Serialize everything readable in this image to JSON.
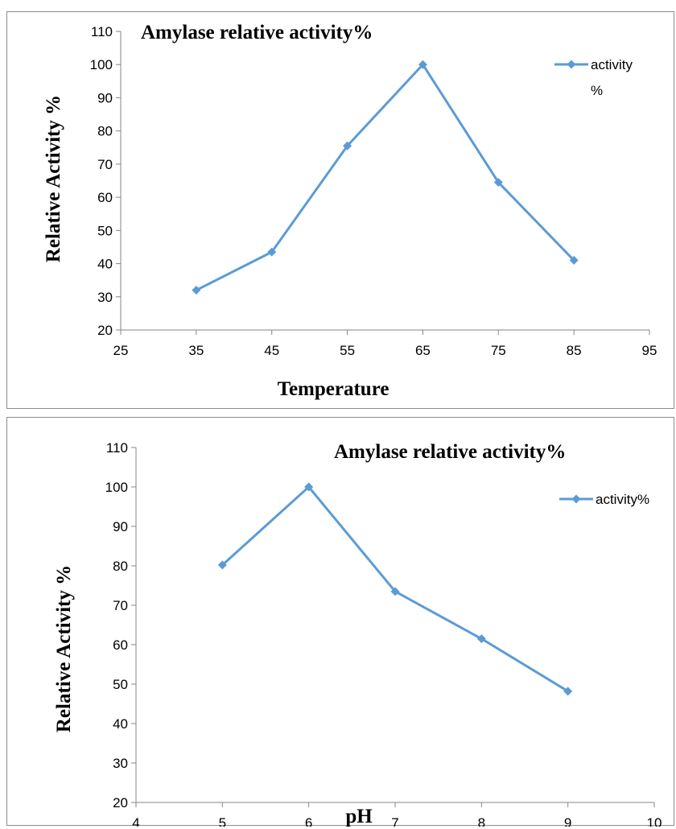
{
  "chart_data": [
    {
      "type": "line",
      "title": "Amylase relative activity%",
      "xlabel": "Temperature",
      "ylabel": "Relative Activity %",
      "xlim": [
        25,
        95
      ],
      "ylim": [
        20,
        110
      ],
      "xticks": [
        25,
        35,
        45,
        55,
        65,
        75,
        85,
        95
      ],
      "yticks": [
        20,
        30,
        40,
        50,
        60,
        70,
        80,
        90,
        100,
        110
      ],
      "grid": false,
      "legend_position": "top-right",
      "legend_lines": [
        "activity",
        "%"
      ],
      "series": [
        {
          "name": "activity %",
          "color": "#5b9bd5",
          "marker": "diamond",
          "x": [
            35,
            45,
            55,
            65,
            75,
            85
          ],
          "y": [
            32,
            43.5,
            75.5,
            100,
            64.5,
            41
          ]
        }
      ]
    },
    {
      "type": "line",
      "title": "Amylase relative activity%",
      "xlabel": "pH",
      "ylabel": "Relative Activity %",
      "xlim": [
        4,
        10
      ],
      "ylim": [
        20,
        110
      ],
      "xticks": [
        4,
        5,
        6,
        7,
        8,
        9,
        10
      ],
      "yticks": [
        20,
        30,
        40,
        50,
        60,
        70,
        80,
        90,
        100,
        110
      ],
      "grid": false,
      "legend_position": "top-right",
      "legend_lines": [
        "activity%"
      ],
      "series": [
        {
          "name": "activity%",
          "color": "#5b9bd5",
          "marker": "diamond",
          "x": [
            5,
            6,
            7,
            8,
            9
          ],
          "y": [
            80.2,
            100,
            73.5,
            61.5,
            48.2
          ]
        }
      ]
    }
  ]
}
